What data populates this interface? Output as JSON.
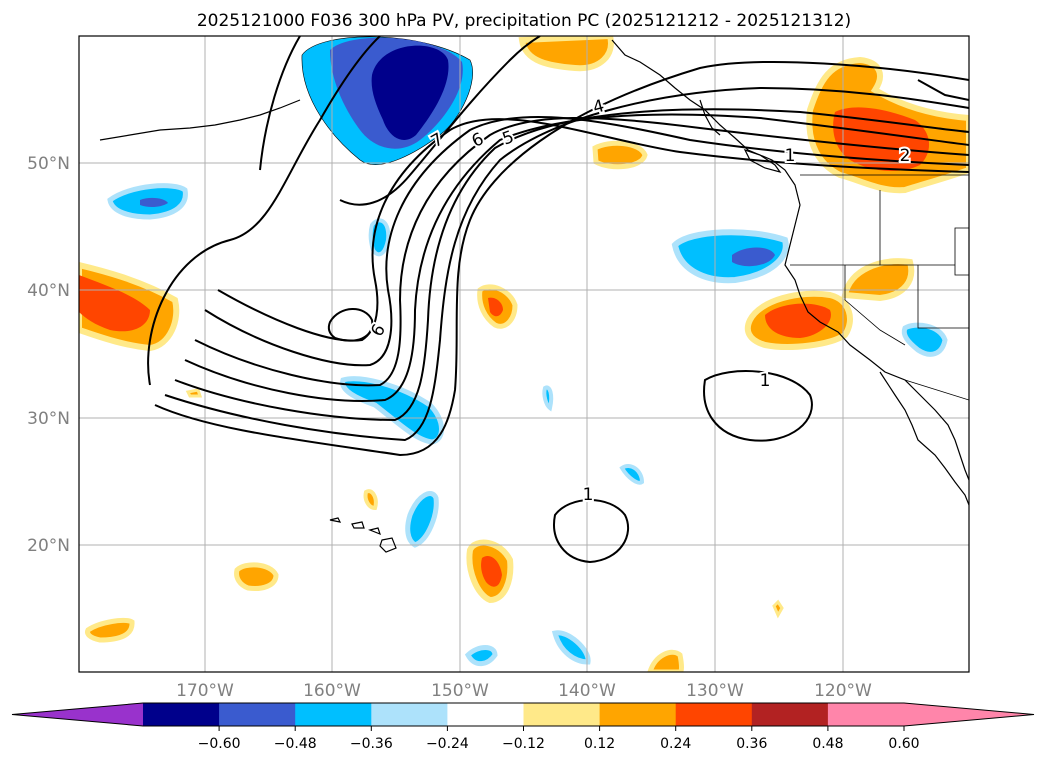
{
  "title": "2025121000 F036 300 hPa PV, precipitation PC (2025121212 - 2025121312)",
  "map": {
    "lat_labels": [
      "50°N",
      "40°N",
      "30°N",
      "20°N"
    ],
    "lon_labels": [
      "170°W",
      "160°W",
      "150°W",
      "140°W",
      "130°W",
      "120°W"
    ],
    "contour_labels": [
      "7",
      "6",
      "5",
      "4",
      "6",
      "1",
      "1",
      "1",
      "2"
    ]
  },
  "colorbar": {
    "ticks": [
      "−0.60",
      "−0.48",
      "−0.36",
      "−0.24",
      "−0.12",
      "0.12",
      "0.24",
      "0.36",
      "0.48",
      "0.60"
    ],
    "colors": {
      "under": "#9932cc",
      "bins": [
        "#00008b",
        "#3a5bcf",
        "#00bfff",
        "#ade2fb",
        "#ffffff",
        "#ffe989",
        "#ffa500",
        "#ff4500",
        "#b22222",
        "#ff85aa"
      ],
      "over": "#ff85aa"
    }
  }
}
